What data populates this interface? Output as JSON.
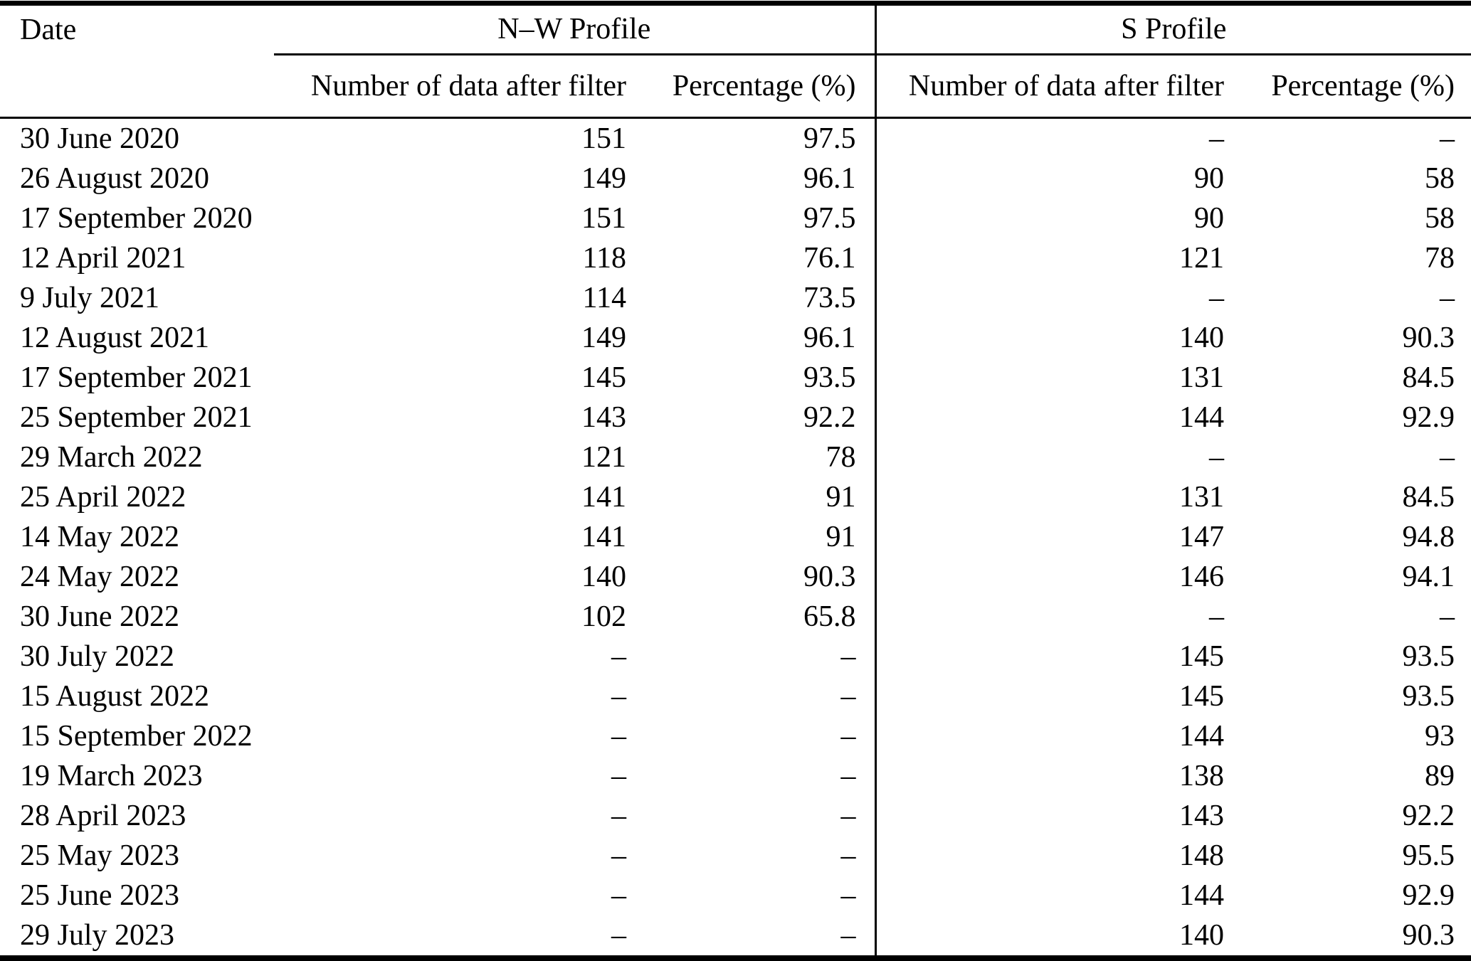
{
  "table": {
    "headers": {
      "date": "Date",
      "nw_group": "N–W Profile",
      "s_group": "S Profile",
      "count_label": "Number of data after filter",
      "percent_label": "Percentage (%)"
    },
    "rows": [
      {
        "date": "30 June 2020",
        "nw_n": "151",
        "nw_pct": "97.5",
        "s_n": "–",
        "s_pct": "–"
      },
      {
        "date": "26 August 2020",
        "nw_n": "149",
        "nw_pct": "96.1",
        "s_n": "90",
        "s_pct": "58"
      },
      {
        "date": "17 September 2020",
        "nw_n": "151",
        "nw_pct": "97.5",
        "s_n": "90",
        "s_pct": "58"
      },
      {
        "date": "12 April 2021",
        "nw_n": "118",
        "nw_pct": "76.1",
        "s_n": "121",
        "s_pct": "78"
      },
      {
        "date": "9 July 2021",
        "nw_n": "114",
        "nw_pct": "73.5",
        "s_n": "–",
        "s_pct": "–"
      },
      {
        "date": "12 August 2021",
        "nw_n": "149",
        "nw_pct": "96.1",
        "s_n": "140",
        "s_pct": "90.3"
      },
      {
        "date": "17 September 2021",
        "nw_n": "145",
        "nw_pct": "93.5",
        "s_n": "131",
        "s_pct": "84.5"
      },
      {
        "date": "25 September 2021",
        "nw_n": "143",
        "nw_pct": "92.2",
        "s_n": "144",
        "s_pct": "92.9"
      },
      {
        "date": "29 March 2022",
        "nw_n": "121",
        "nw_pct": "78",
        "s_n": "–",
        "s_pct": "–"
      },
      {
        "date": "25 April 2022",
        "nw_n": "141",
        "nw_pct": "91",
        "s_n": "131",
        "s_pct": "84.5"
      },
      {
        "date": "14 May 2022",
        "nw_n": "141",
        "nw_pct": "91",
        "s_n": "147",
        "s_pct": "94.8"
      },
      {
        "date": "24 May 2022",
        "nw_n": "140",
        "nw_pct": "90.3",
        "s_n": "146",
        "s_pct": "94.1"
      },
      {
        "date": "30 June 2022",
        "nw_n": "102",
        "nw_pct": "65.8",
        "s_n": "–",
        "s_pct": "–"
      },
      {
        "date": "30 July 2022",
        "nw_n": "–",
        "nw_pct": "–",
        "s_n": "145",
        "s_pct": "93.5"
      },
      {
        "date": "15 August 2022",
        "nw_n": "–",
        "nw_pct": "–",
        "s_n": "145",
        "s_pct": "93.5"
      },
      {
        "date": "15 September 2022",
        "nw_n": "–",
        "nw_pct": "–",
        "s_n": "144",
        "s_pct": "93"
      },
      {
        "date": "19 March 2023",
        "nw_n": "–",
        "nw_pct": "–",
        "s_n": "138",
        "s_pct": "89"
      },
      {
        "date": "28 April 2023",
        "nw_n": "–",
        "nw_pct": "–",
        "s_n": "143",
        "s_pct": "92.2"
      },
      {
        "date": "25 May 2023",
        "nw_n": "–",
        "nw_pct": "–",
        "s_n": "148",
        "s_pct": "95.5"
      },
      {
        "date": "25 June 2023",
        "nw_n": "–",
        "nw_pct": "–",
        "s_n": "144",
        "s_pct": "92.9"
      },
      {
        "date": "29 July 2023",
        "nw_n": "–",
        "nw_pct": "–",
        "s_n": "140",
        "s_pct": "90.3"
      }
    ]
  }
}
